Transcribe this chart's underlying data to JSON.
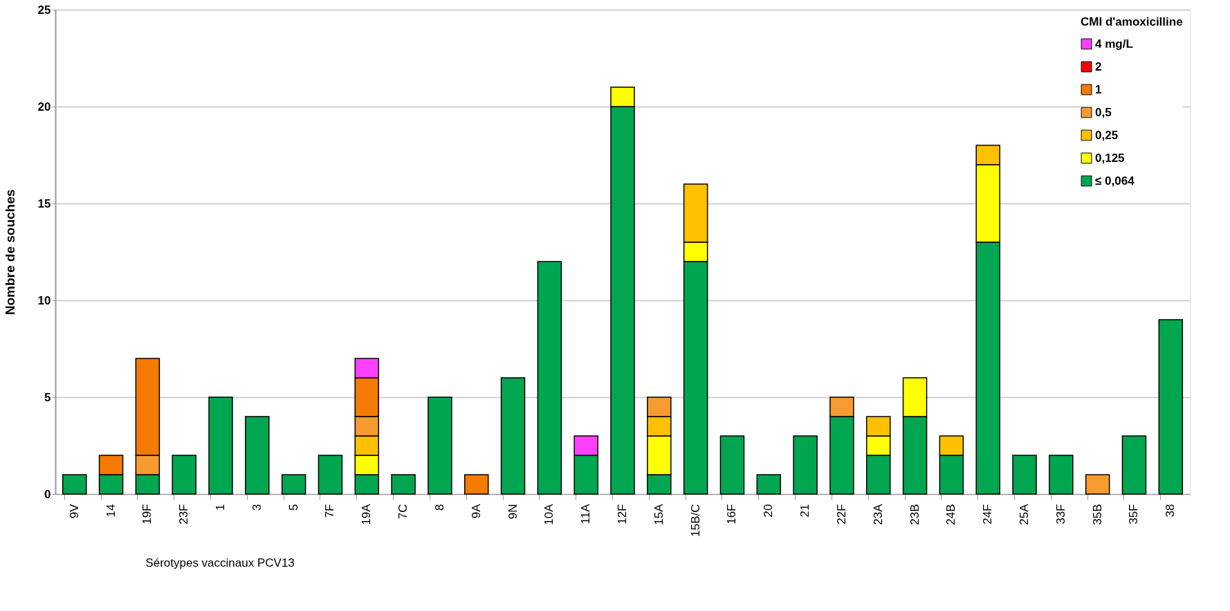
{
  "chart_data": {
    "type": "bar",
    "stacked": true,
    "ylabel": "Nombre de souches",
    "legend_title": "CMI d'amoxicilline",
    "legend": "top right",
    "grid": "y",
    "ylim": [
      0,
      25
    ],
    "yticks": [
      0,
      5,
      10,
      15,
      20,
      25
    ],
    "categories": [
      "9V",
      "14",
      "19F",
      "23F",
      "1",
      "3",
      "5",
      "7F",
      "19A",
      "7C",
      "8",
      "9A",
      "9N",
      "10A",
      "11A",
      "12F",
      "15A",
      "15B/C",
      "16F",
      "20",
      "21",
      "22F",
      "23A",
      "23B",
      "24B",
      "24F",
      "25A",
      "33F",
      "35B",
      "35F",
      "38"
    ],
    "series": [
      {
        "name": "≤ 0,064",
        "color": "#00a650",
        "values": [
          1,
          1,
          1,
          2,
          5,
          4,
          1,
          2,
          1,
          1,
          5,
          0,
          6,
          12,
          2,
          20,
          1,
          12,
          3,
          1,
          3,
          4,
          2,
          4,
          2,
          13,
          2,
          2,
          0,
          3,
          9
        ]
      },
      {
        "name": "0,125",
        "color": "#ffff00",
        "values": [
          0,
          0,
          0,
          0,
          0,
          0,
          0,
          0,
          1,
          0,
          0,
          0,
          0,
          0,
          0,
          1,
          2,
          1,
          0,
          0,
          0,
          0,
          1,
          2,
          0,
          4,
          0,
          0,
          0,
          0,
          0
        ]
      },
      {
        "name": "0,25",
        "color": "#ffc000",
        "values": [
          0,
          0,
          0,
          0,
          0,
          0,
          0,
          0,
          1,
          0,
          0,
          0,
          0,
          0,
          0,
          0,
          1,
          3,
          0,
          0,
          0,
          0,
          1,
          0,
          1,
          1,
          0,
          0,
          0,
          0,
          0
        ]
      },
      {
        "name": "0,5",
        "color": "#f79a30",
        "values": [
          0,
          0,
          1,
          0,
          0,
          0,
          0,
          0,
          1,
          0,
          0,
          0,
          0,
          0,
          0,
          0,
          1,
          0,
          0,
          0,
          0,
          1,
          0,
          0,
          0,
          0,
          0,
          0,
          1,
          0,
          0
        ]
      },
      {
        "name": "1",
        "color": "#f47a00",
        "values": [
          0,
          1,
          5,
          0,
          0,
          0,
          0,
          0,
          2,
          0,
          0,
          1,
          0,
          0,
          0,
          0,
          0,
          0,
          0,
          0,
          0,
          0,
          0,
          0,
          0,
          0,
          0,
          0,
          0,
          0,
          0
        ]
      },
      {
        "name": "2",
        "color": "#ff0000",
        "values": [
          0,
          0,
          0,
          0,
          0,
          0,
          0,
          0,
          0,
          0,
          0,
          0,
          0,
          0,
          0,
          0,
          0,
          0,
          0,
          0,
          0,
          0,
          0,
          0,
          0,
          0,
          0,
          0,
          0,
          0,
          0
        ]
      },
      {
        "name": "4 mg/L",
        "color": "#ff40ff",
        "values": [
          0,
          0,
          0,
          0,
          0,
          0,
          0,
          0,
          1,
          0,
          0,
          0,
          0,
          0,
          1,
          0,
          0,
          0,
          0,
          0,
          0,
          0,
          0,
          0,
          0,
          0,
          0,
          0,
          0,
          0,
          0
        ]
      }
    ],
    "annotations": [
      "Sérotypes vaccinaux PCV13"
    ]
  }
}
